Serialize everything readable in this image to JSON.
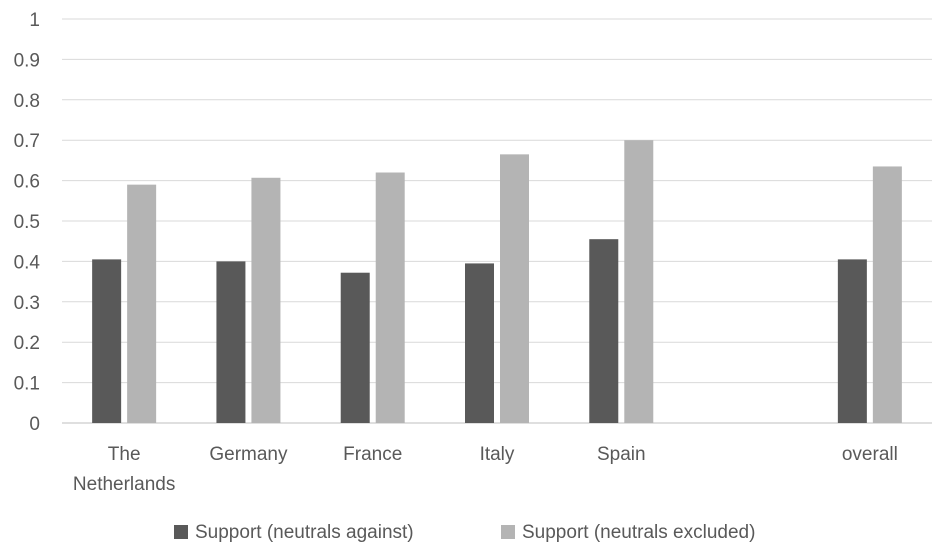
{
  "chart_data": {
    "type": "bar",
    "categories": [
      [
        "The",
        "Netherlands"
      ],
      [
        "Germany"
      ],
      [
        "France"
      ],
      [
        "Italy"
      ],
      [
        "Spain"
      ],
      [
        ""
      ],
      [
        "overall"
      ]
    ],
    "series": [
      {
        "name": "Support (neutrals against)",
        "color": "#595959",
        "values": [
          0.405,
          0.4,
          0.372,
          0.395,
          0.455,
          null,
          0.405
        ]
      },
      {
        "name": "Support (neutrals excluded)",
        "color": "#b4b4b4",
        "values": [
          0.59,
          0.607,
          0.62,
          0.665,
          0.7,
          null,
          0.635
        ]
      }
    ],
    "ylim": [
      0,
      1
    ],
    "yticks": [
      "0",
      "0.1",
      "0.2",
      "0.3",
      "0.4",
      "0.5",
      "0.6",
      "0.7",
      "0.8",
      "0.9",
      "1"
    ],
    "grid": true,
    "legend_position": "bottom",
    "title": "",
    "xlabel": "",
    "ylabel": ""
  }
}
